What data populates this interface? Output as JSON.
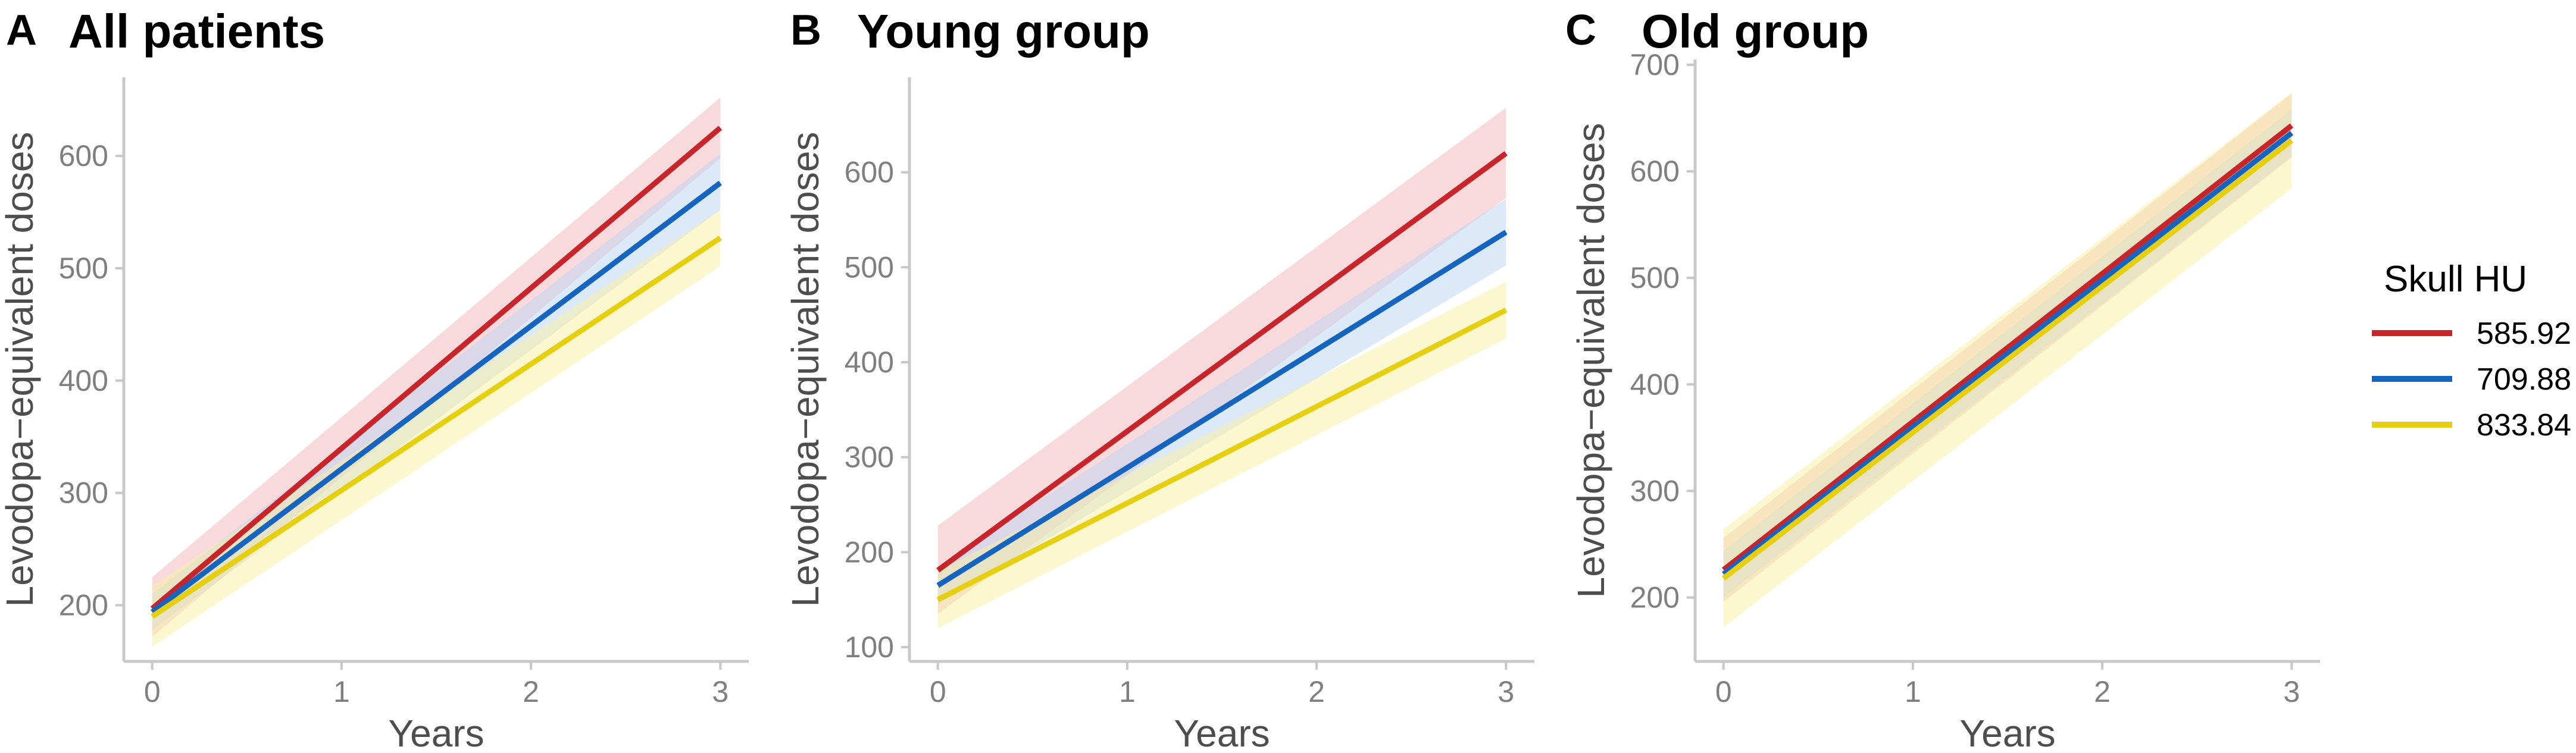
{
  "chart_data": [
    {
      "type": "line",
      "panel_letter": "A",
      "title": "All patients",
      "xlabel": "Years",
      "ylabel": "Levodopa−equivalent doses",
      "xlim": [
        -0.15,
        3.15
      ],
      "ylim": [
        150,
        670
      ],
      "x_ticks": [
        0,
        1,
        2,
        3
      ],
      "y_ticks": [
        200,
        300,
        400,
        500,
        600
      ],
      "grid": false,
      "series": [
        {
          "name": "585.92",
          "x": [
            0,
            3
          ],
          "values": [
            197,
            625
          ],
          "lower": [
            172,
            598
          ],
          "upper": [
            225,
            652
          ]
        },
        {
          "name": "709.88",
          "x": [
            0,
            3
          ],
          "values": [
            194,
            576
          ],
          "lower": [
            178,
            552
          ],
          "upper": [
            210,
            602
          ]
        },
        {
          "name": "833.84",
          "x": [
            0,
            3
          ],
          "values": [
            190,
            527
          ],
          "lower": [
            163,
            502
          ],
          "upper": [
            217,
            552
          ]
        }
      ]
    },
    {
      "type": "line",
      "panel_letter": "B",
      "title": "Young group",
      "xlabel": "Years",
      "ylabel": "Levodopa−equivalent doses",
      "xlim": [
        -0.15,
        3.15
      ],
      "ylim": [
        85,
        700
      ],
      "x_ticks": [
        0,
        1,
        2,
        3
      ],
      "y_ticks": [
        100,
        200,
        300,
        400,
        500,
        600
      ],
      "grid": false,
      "series": [
        {
          "name": "585.92",
          "x": [
            0,
            3
          ],
          "values": [
            181,
            620
          ],
          "lower": [
            135,
            573
          ],
          "upper": [
            228,
            668
          ]
        },
        {
          "name": "709.88",
          "x": [
            0,
            3
          ],
          "values": [
            165,
            537
          ],
          "lower": [
            145,
            502
          ],
          "upper": [
            185,
            572
          ]
        },
        {
          "name": "833.84",
          "x": [
            0,
            3
          ],
          "values": [
            150,
            455
          ],
          "lower": [
            120,
            425
          ],
          "upper": [
            180,
            485
          ]
        }
      ]
    },
    {
      "type": "line",
      "panel_letter": "C",
      "title": "Old group",
      "xlabel": "Years",
      "ylabel": "Levodopa−equivalent doses",
      "xlim": [
        -0.15,
        3.15
      ],
      "ylim": [
        140,
        705
      ],
      "x_ticks": [
        0,
        1,
        2,
        3
      ],
      "y_ticks": [
        200,
        300,
        400,
        500,
        600,
        700
      ],
      "grid": false,
      "series": [
        {
          "name": "585.92",
          "x": [
            0,
            3
          ],
          "values": [
            226,
            643
          ],
          "lower": [
            196,
            613
          ],
          "upper": [
            256,
            673
          ]
        },
        {
          "name": "709.88",
          "x": [
            0,
            3
          ],
          "values": [
            222,
            636
          ],
          "lower": [
            200,
            614
          ],
          "upper": [
            244,
            658
          ]
        },
        {
          "name": "833.84",
          "x": [
            0,
            3
          ],
          "values": [
            218,
            629
          ],
          "lower": [
            172,
            584
          ],
          "upper": [
            264,
            674
          ]
        }
      ]
    }
  ],
  "legend": {
    "title": "Skull HU",
    "position": "right",
    "items": [
      {
        "label": "585.92",
        "color": "#C8252B"
      },
      {
        "label": "709.88",
        "color": "#1565C0"
      },
      {
        "label": "833.84",
        "color": "#E6CE10"
      }
    ]
  },
  "band_colors": [
    "#F2B6BA",
    "#B9D4F4",
    "#F8EFA0"
  ]
}
